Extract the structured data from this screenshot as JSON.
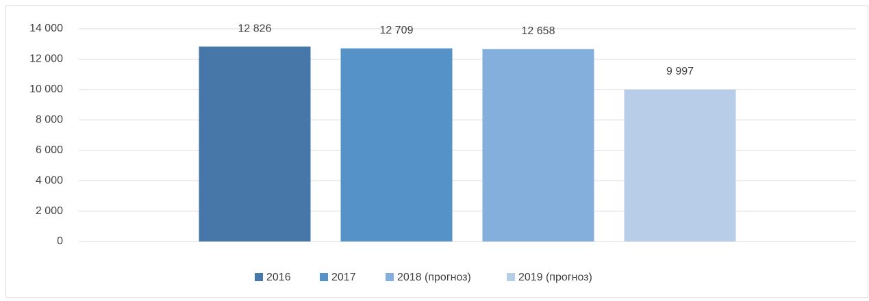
{
  "chart_data": {
    "type": "bar",
    "categories": [
      null
    ],
    "series": [
      {
        "name": "2016",
        "color": "#4677a8",
        "values": [
          12826
        ],
        "value_labels": [
          "12 826"
        ]
      },
      {
        "name": "2017",
        "color": "#5592c8",
        "values": [
          12709
        ],
        "value_labels": [
          "12 709"
        ]
      },
      {
        "name": "2018 (прогноз)",
        "color": "#84aedb",
        "values": [
          12658
        ],
        "value_labels": [
          "12 658"
        ]
      },
      {
        "name": "2019 (прогноз)",
        "color": "#b8cde8",
        "values": [
          9997
        ],
        "value_labels": [
          "9 997"
        ]
      }
    ],
    "ylim": [
      0,
      14000
    ],
    "yticks": [
      0,
      {
        "value": 2000,
        "label": "2 000"
      },
      {
        "value": 4000,
        "label": "4 000"
      },
      {
        "value": 6000,
        "label": "6 000"
      },
      {
        "value": 8000,
        "label": "8 000"
      },
      {
        "value": 10000,
        "label": "10 000"
      },
      {
        "value": 12000,
        "label": "12 000"
      },
      {
        "value": 14000,
        "label": "14 000"
      }
    ],
    "grid": true,
    "legend": "bottom"
  }
}
